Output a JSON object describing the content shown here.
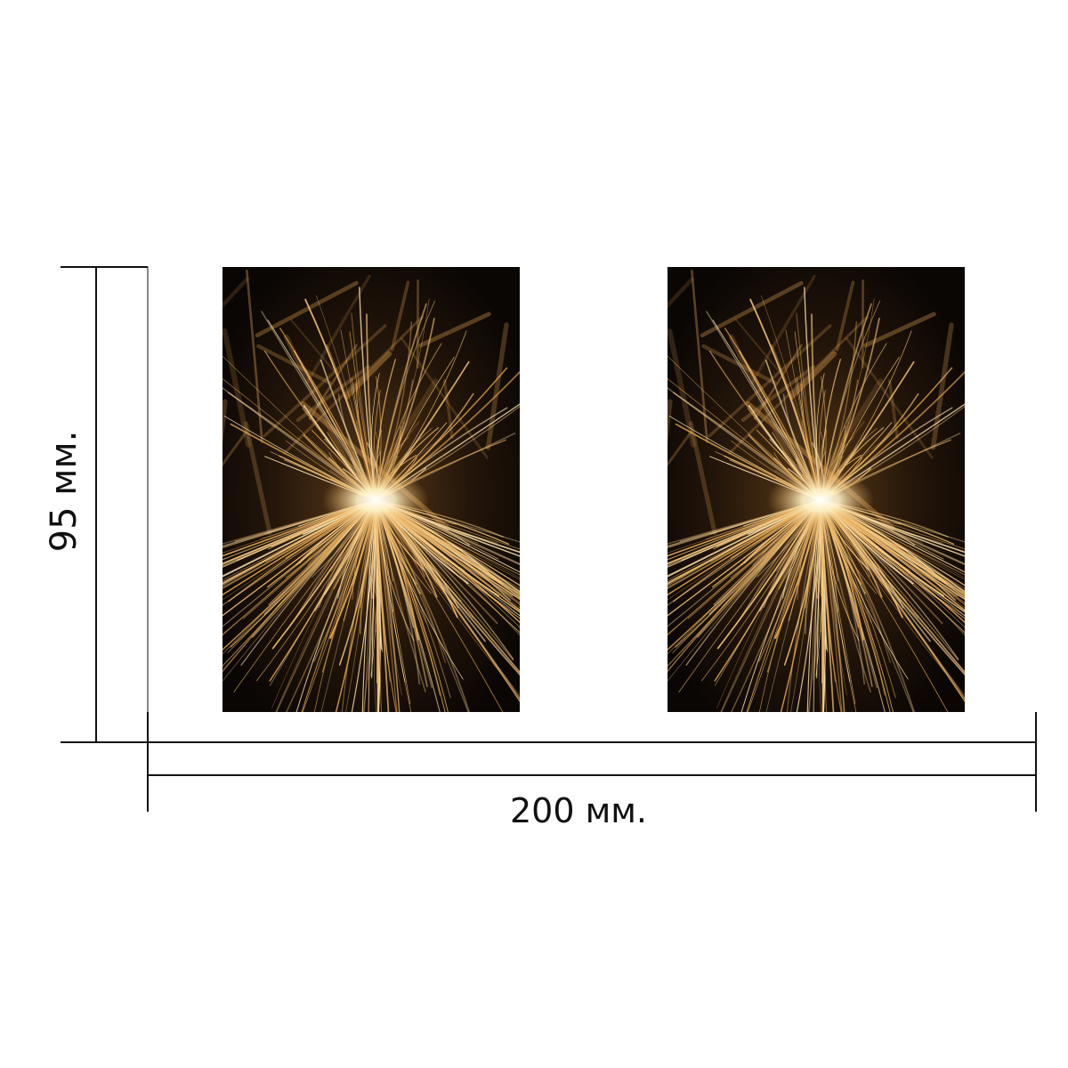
{
  "dimensions": {
    "height_label": "95 мм.",
    "width_label": "200 мм."
  },
  "panels": [
    {
      "name": "left",
      "picture": "golden-sparks"
    },
    {
      "name": "right",
      "picture": "golden-sparks"
    }
  ],
  "colors": {
    "line": "#111111",
    "spark_core": "#fff6d8",
    "spark": "#e8b060",
    "background_dark": "#0e0906"
  }
}
